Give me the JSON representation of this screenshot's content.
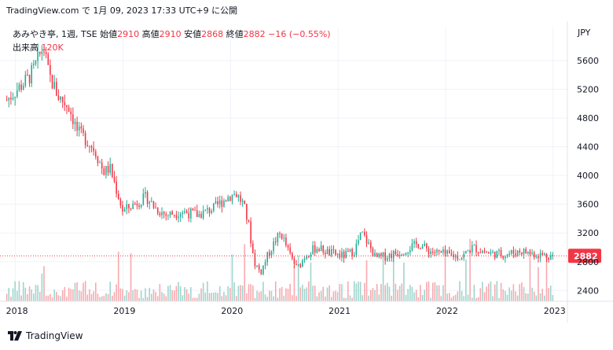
{
  "header": {
    "publisher_line": "TradingView.com で 1月 09, 2023 17:33 UTC+9 に公開"
  },
  "legend": {
    "symbol": "あみやき亭, 1週, TSE",
    "open_label": "始値",
    "open": "2910",
    "high_label": "高値",
    "high": "2910",
    "low_label": "安値",
    "low": "2868",
    "close_label": "終値",
    "close": "2882",
    "change": "−16 (−0.55%)",
    "volume_label": "出来高",
    "volume": "120K"
  },
  "currency": "JPY",
  "footer": {
    "brand": "TradingView"
  },
  "colors": {
    "up": "#22ab94",
    "down": "#f23645",
    "up_vol": "#9fd4cc",
    "down_vol": "#f7a9ae",
    "grid": "#f0f3fa"
  },
  "chart_data": {
    "type": "candlestick",
    "price_axis": {
      "min": 2250,
      "max": 5950,
      "ticks": [
        2400,
        2800,
        3200,
        3600,
        4000,
        4400,
        4800,
        5200,
        5600
      ]
    },
    "time_axis": {
      "labels": [
        "2018",
        "2019",
        "2020",
        "2021",
        "2022",
        "2023"
      ]
    },
    "last_price": 2882,
    "anchors": [
      {
        "t": 2017.92,
        "p": 5050
      },
      {
        "t": 2018.05,
        "p": 5250
      },
      {
        "t": 2018.12,
        "p": 5350
      },
      {
        "t": 2018.18,
        "p": 5500
      },
      {
        "t": 2018.26,
        "p": 5800
      },
      {
        "t": 2018.31,
        "p": 5400
      },
      {
        "t": 2018.4,
        "p": 5100
      },
      {
        "t": 2018.5,
        "p": 4950
      },
      {
        "t": 2018.58,
        "p": 4600
      },
      {
        "t": 2018.66,
        "p": 4500
      },
      {
        "t": 2018.74,
        "p": 4350
      },
      {
        "t": 2018.82,
        "p": 4050
      },
      {
        "t": 2018.88,
        "p": 4100
      },
      {
        "t": 2018.94,
        "p": 3800
      },
      {
        "t": 2019.0,
        "p": 3500
      },
      {
        "t": 2019.1,
        "p": 3600
      },
      {
        "t": 2019.22,
        "p": 3700
      },
      {
        "t": 2019.3,
        "p": 3550
      },
      {
        "t": 2019.4,
        "p": 3450
      },
      {
        "t": 2019.55,
        "p": 3500
      },
      {
        "t": 2019.7,
        "p": 3450
      },
      {
        "t": 2019.85,
        "p": 3550
      },
      {
        "t": 2019.97,
        "p": 3700
      },
      {
        "t": 2020.05,
        "p": 3750
      },
      {
        "t": 2020.12,
        "p": 3600
      },
      {
        "t": 2020.17,
        "p": 3300
      },
      {
        "t": 2020.22,
        "p": 2800
      },
      {
        "t": 2020.28,
        "p": 2650
      },
      {
        "t": 2020.35,
        "p": 2900
      },
      {
        "t": 2020.42,
        "p": 3100
      },
      {
        "t": 2020.47,
        "p": 3200
      },
      {
        "t": 2020.55,
        "p": 2900
      },
      {
        "t": 2020.62,
        "p": 2700
      },
      {
        "t": 2020.7,
        "p": 2900
      },
      {
        "t": 2020.8,
        "p": 3000
      },
      {
        "t": 2020.92,
        "p": 2920
      },
      {
        "t": 2021.05,
        "p": 2880
      },
      {
        "t": 2021.15,
        "p": 2950
      },
      {
        "t": 2021.22,
        "p": 3200
      },
      {
        "t": 2021.28,
        "p": 3050
      },
      {
        "t": 2021.35,
        "p": 2850
      },
      {
        "t": 2021.45,
        "p": 2880
      },
      {
        "t": 2021.6,
        "p": 2950
      },
      {
        "t": 2021.75,
        "p": 3050
      },
      {
        "t": 2021.85,
        "p": 2950
      },
      {
        "t": 2022.0,
        "p": 2900
      },
      {
        "t": 2022.15,
        "p": 2870
      },
      {
        "t": 2022.25,
        "p": 3000
      },
      {
        "t": 2022.4,
        "p": 2920
      },
      {
        "t": 2022.55,
        "p": 2900
      },
      {
        "t": 2022.7,
        "p": 2950
      },
      {
        "t": 2022.85,
        "p": 2900
      },
      {
        "t": 2023.0,
        "p": 2882
      }
    ]
  }
}
